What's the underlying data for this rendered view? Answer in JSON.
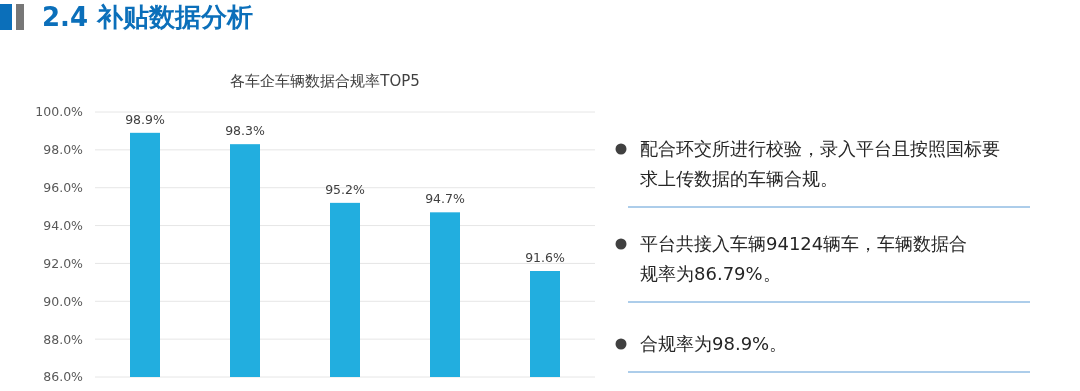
{
  "chart_data": {
    "type": "bar",
    "title": "各车企车辆数据合规率TOP5",
    "categories": [
      null,
      null,
      null,
      null,
      null
    ],
    "values": [
      98.9,
      98.3,
      95.2,
      94.7,
      91.6
    ],
    "value_labels": [
      "98.9%",
      "98.3%",
      "95.2%",
      "94.7%",
      "91.6%"
    ],
    "color": "#22aedf",
    "ylim": [
      86,
      100
    ],
    "yticks": [
      {
        "value": 86,
        "label": "86.0%"
      },
      {
        "value": 88,
        "label": "88.0%"
      },
      {
        "value": 90,
        "label": "90.0%"
      },
      {
        "value": 92,
        "label": "92.0%"
      },
      {
        "value": 94,
        "label": "94.0%"
      },
      {
        "value": 96,
        "label": "96.0%"
      },
      {
        "value": 98,
        "label": "98.0%"
      },
      {
        "value": 100,
        "label": "100.0%"
      }
    ],
    "grid": "y",
    "annotations": [
      "2.4 补贴数据分析",
      "配合环交所进行校验，录入平台且按照国标要求上传数据的车辆合规。",
      "平台共接入车辆94124辆车，车辆数据合规率为86.79%。",
      "合规率为98.9%。"
    ]
  }
}
